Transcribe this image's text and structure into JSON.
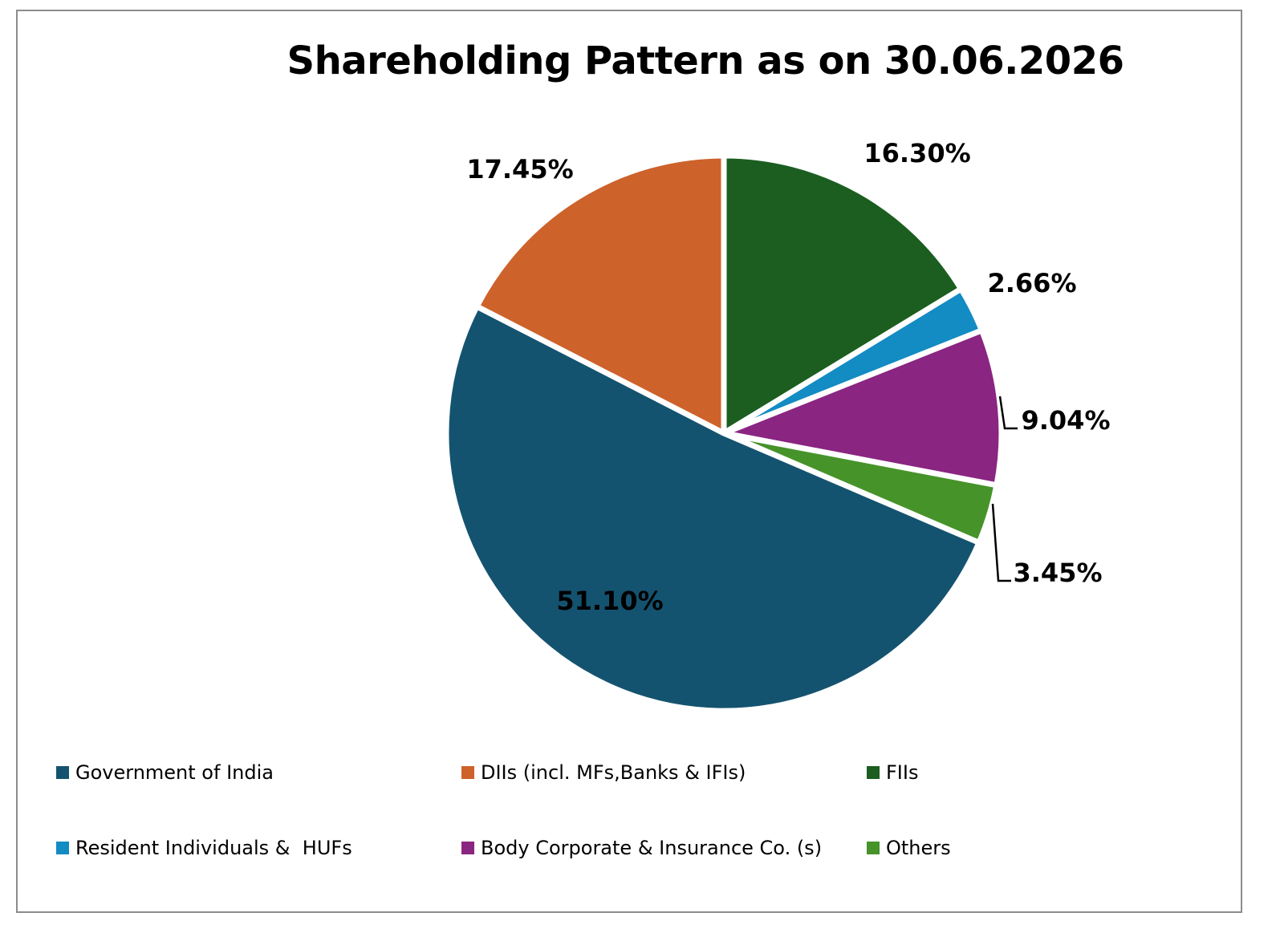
{
  "chart_data": {
    "type": "pie",
    "title": "Shareholding Pattern as on 30.06.2026",
    "categories": [
      "Government of India",
      "DIIs (incl. MFs,Banks & IFIs)",
      "FIIs",
      "Resident Individuals &  HUFs",
      "Body Corporate & Insurance Co. (s)",
      "Others"
    ],
    "values": [
      51.1,
      17.45,
      16.3,
      2.66,
      9.04,
      3.45
    ],
    "labels": [
      "51.10%",
      "17.45%",
      "16.30%",
      "2.66%",
      "9.04%",
      "3.45%"
    ],
    "colors": [
      "#14536f",
      "#cd622b",
      "#1b5e20",
      "#138bc3",
      "#8a2582",
      "#46932a"
    ],
    "legend_position": "bottom",
    "slice_order_clockwise_from_top": [
      "FIIs",
      "Resident Individuals &  HUFs",
      "Body Corporate & Insurance Co. (s)",
      "Others",
      "Government of India",
      "DIIs (incl. MFs,Banks & IFIs)"
    ]
  }
}
